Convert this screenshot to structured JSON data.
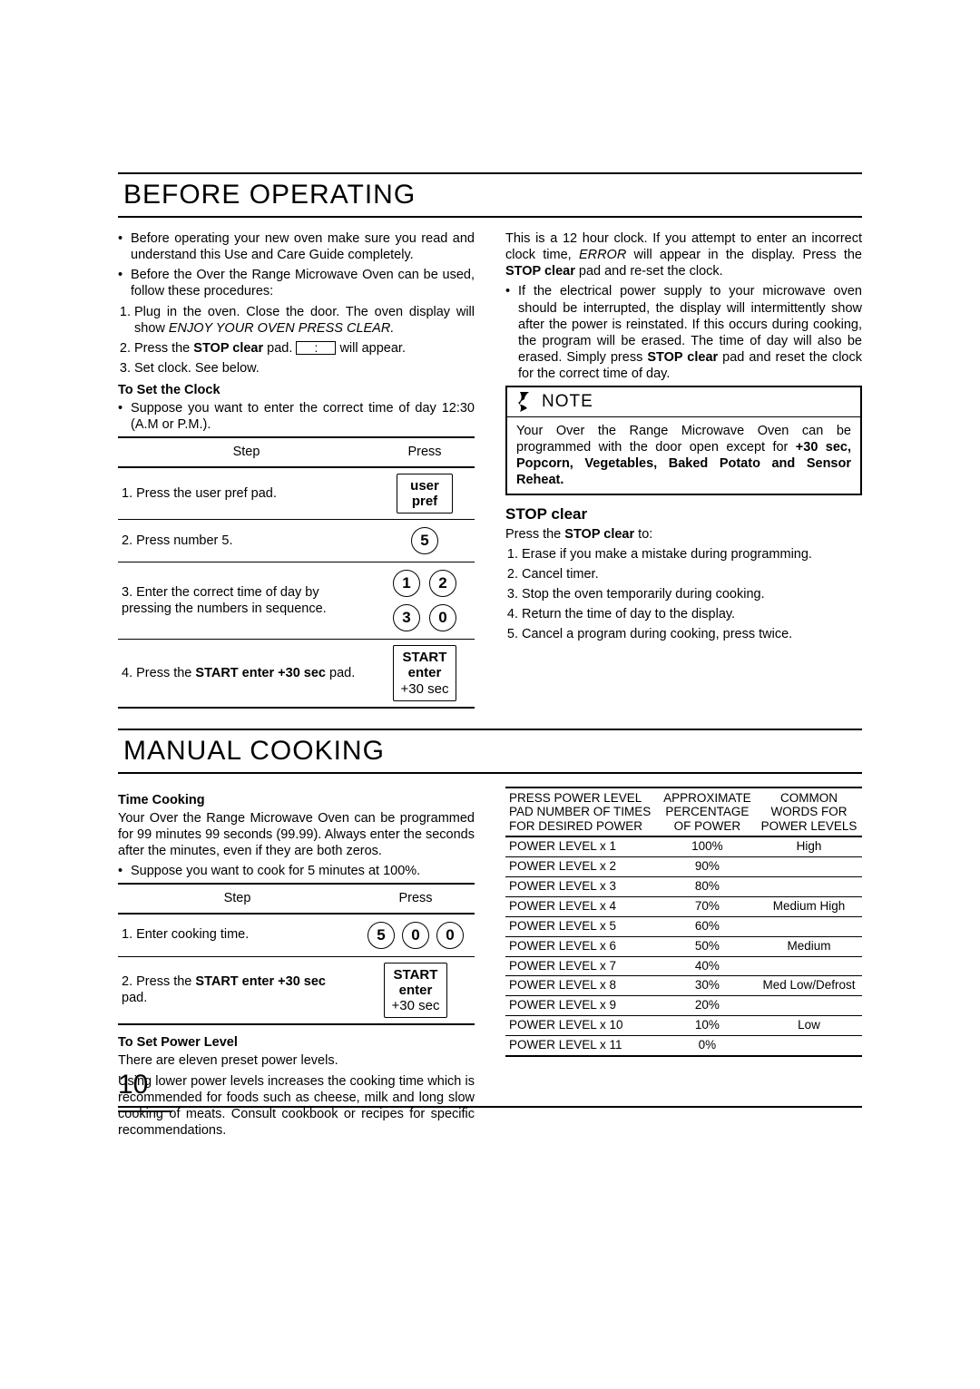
{
  "page_number": "10",
  "sec1": {
    "title": "BEFORE OPERATING",
    "left": {
      "intro1": "Before operating your new oven make sure you read and understand this Use and Care Guide completely.",
      "intro2": "Before the Over the Range Microwave Oven can be used, follow these procedures:",
      "proc1_a": "Plug in the oven. Close the door. The oven display will show ",
      "proc1_b": "ENJOY YOUR OVEN PRESS CLEAR.",
      "proc2_a": "Press the ",
      "proc2_b": "STOP clear",
      "proc2_c": " pad. ",
      "proc2_d": " will appear.",
      "proc3": "Set clock. See below.",
      "clock_h": "To Set the Clock",
      "clock_sup": "Suppose you want to enter the correct time of day 12:30 (A.M or P.M.).",
      "th_step": "Step",
      "th_press": "Press",
      "r1": "Press the user pref pad.",
      "r1_btn1": "user",
      "r1_btn2": "pref",
      "r2": "Press number 5.",
      "r2_btn": "5",
      "r3": "Enter the correct time of day by pressing the numbers in sequence.",
      "r3_b": [
        "1",
        "2",
        "3",
        "0"
      ],
      "r4a": "Press the ",
      "r4b": "START enter +30 sec",
      "r4c": " pad.",
      "r4_btn1": "START",
      "r4_btn2": "enter",
      "r4_btn3": "+30 sec"
    },
    "right": {
      "p1a": "This is a 12 hour clock. If you attempt to enter an incorrect clock time, ",
      "p1b": "ERROR",
      "p1c": " will appear in the display. Press the ",
      "p1d": "STOP clear",
      "p1e": " pad and re-set the clock.",
      "b1a": "If the electrical power supply to your microwave oven should be interrupted, the display will intermittently show after the power is reinstated. If this occurs during cooking, the program will be erased. The time of day will also be erased. Simply press ",
      "b1b": "STOP clear",
      "b1c": " pad and reset the clock for the correct time of day.",
      "note_h": "NOTE",
      "note_a": "Your Over the Range Microwave Oven can be programmed with the door open except for ",
      "note_b": "+30 sec, Popcorn, Vegetables, Baked Potato and Sensor Reheat.",
      "stop_h": "STOP clear",
      "stop_intro_a": "Press the ",
      "stop_intro_b": "STOP clear",
      "stop_intro_c": " to:",
      "s1": "Erase if you make a mistake during programming.",
      "s2": "Cancel timer.",
      "s3": "Stop the oven temporarily during cooking.",
      "s4": "Return the time of day to the display.",
      "s5": "Cancel a program during cooking, press twice."
    }
  },
  "sec2": {
    "title": "MANUAL COOKING",
    "left": {
      "tc_h": "Time Cooking",
      "tc_p": "Your Over the Range Microwave Oven can be programmed for 99 minutes 99 seconds (99.99). Always enter the seconds after the minutes, even if they are both zeros.",
      "tc_sup": "Suppose you want to cook for 5 minutes at 100%.",
      "th_step": "Step",
      "th_press": "Press",
      "r1": "Enter cooking time.",
      "r1_b": [
        "5",
        "0",
        "0"
      ],
      "r2a": "Press the ",
      "r2b": "START enter +30 sec",
      "r2c": " pad.",
      "r2_btn1": "START",
      "r2_btn2": "enter",
      "r2_btn3": "+30 sec",
      "pl_h": "To Set Power Level",
      "pl_p1": "There are eleven preset power levels.",
      "pl_p2": "Using lower power levels increases the cooking time which is recommended for foods such as cheese, milk and long slow cooking of meats. Consult cookbook or recipes for specific recommendations."
    },
    "power": {
      "h1a": "PRESS POWER LEVEL",
      "h1b": "PAD NUMBER OF TIMES",
      "h1c": "FOR DESIRED POWER",
      "h2a": "APPROXIMATE",
      "h2b": "PERCENTAGE",
      "h2c": "OF POWER",
      "h3a": "COMMON",
      "h3b": "WORDS FOR",
      "h3c": "POWER LEVELS",
      "rows": [
        [
          "POWER LEVEL x 1",
          "100%",
          "High"
        ],
        [
          "POWER LEVEL x 2",
          "90%",
          ""
        ],
        [
          "POWER LEVEL x 3",
          "80%",
          ""
        ],
        [
          "POWER LEVEL x 4",
          "70%",
          "Medium High"
        ],
        [
          "POWER LEVEL x 5",
          "60%",
          ""
        ],
        [
          "POWER LEVEL x 6",
          "50%",
          "Medium"
        ],
        [
          "POWER LEVEL x 7",
          "40%",
          ""
        ],
        [
          "POWER LEVEL x 8",
          "30%",
          "Med Low/Defrost"
        ],
        [
          "POWER LEVEL x 9",
          "20%",
          ""
        ],
        [
          "POWER LEVEL x 10",
          "10%",
          "Low"
        ],
        [
          "POWER LEVEL x 11",
          "0%",
          ""
        ]
      ]
    }
  }
}
